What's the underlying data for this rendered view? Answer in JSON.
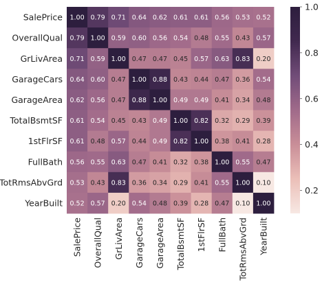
{
  "chart_data": {
    "type": "heatmap",
    "variables": [
      "SalePrice",
      "OverallQual",
      "GrLivArea",
      "GarageCars",
      "GarageArea",
      "TotalBsmtSF",
      "1stFlrSF",
      "FullBath",
      "TotRmsAbvGrd",
      "YearBuilt"
    ],
    "matrix": [
      [
        1.0,
        0.79,
        0.71,
        0.64,
        0.62,
        0.61,
        0.61,
        0.56,
        0.53,
        0.52
      ],
      [
        0.79,
        1.0,
        0.59,
        0.6,
        0.56,
        0.54,
        0.48,
        0.55,
        0.43,
        0.57
      ],
      [
        0.71,
        0.59,
        1.0,
        0.47,
        0.47,
        0.45,
        0.57,
        0.63,
        0.83,
        0.2
      ],
      [
        0.64,
        0.6,
        0.47,
        1.0,
        0.88,
        0.43,
        0.44,
        0.47,
        0.36,
        0.54
      ],
      [
        0.62,
        0.56,
        0.47,
        0.88,
        1.0,
        0.49,
        0.49,
        0.41,
        0.34,
        0.48
      ],
      [
        0.61,
        0.54,
        0.45,
        0.43,
        0.49,
        1.0,
        0.82,
        0.32,
        0.29,
        0.39
      ],
      [
        0.61,
        0.48,
        0.57,
        0.44,
        0.49,
        0.82,
        1.0,
        0.38,
        0.41,
        0.28
      ],
      [
        0.56,
        0.55,
        0.63,
        0.47,
        0.41,
        0.32,
        0.38,
        1.0,
        0.55,
        0.47
      ],
      [
        0.53,
        0.43,
        0.83,
        0.36,
        0.34,
        0.29,
        0.41,
        0.55,
        1.0,
        0.1
      ],
      [
        0.52,
        0.57,
        0.2,
        0.54,
        0.48,
        0.39,
        0.28,
        0.47,
        0.1,
        1.0
      ]
    ],
    "value_format": "0.00",
    "annotated": true,
    "colorbar": {
      "ticks": [
        0.2,
        0.4,
        0.6,
        0.8,
        1.0
      ],
      "tick_labels": [
        "0.2",
        "0.4",
        "0.6",
        "0.8",
        "1.0"
      ],
      "range": [
        0.1,
        1.0
      ],
      "position": "right"
    },
    "colormap": [
      "#f7e8e3",
      "#ebbfb8",
      "#c98e98",
      "#a06a8a",
      "#714c78",
      "#41294f",
      "#2d1e3e"
    ],
    "title": "",
    "xlabel": "",
    "ylabel": ""
  }
}
